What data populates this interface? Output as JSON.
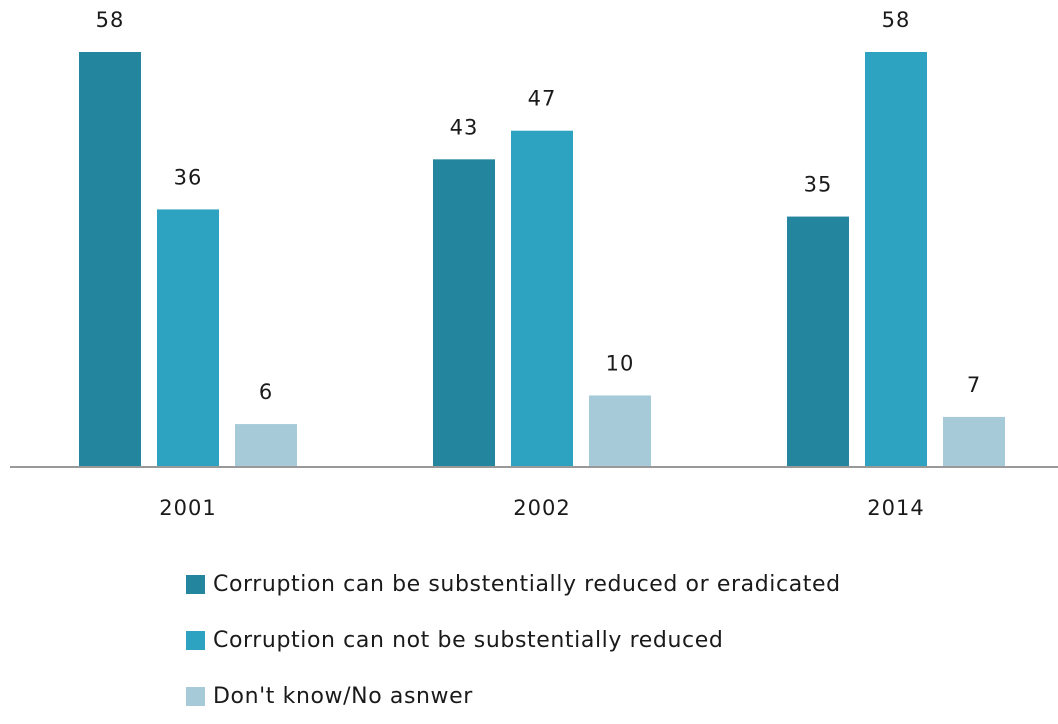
{
  "chart_data": {
    "type": "bar",
    "categories": [
      "2001",
      "2002",
      "2014"
    ],
    "series": [
      {
        "name": "Corruption can be substentially reduced or eradicated",
        "values": [
          58,
          43,
          35
        ],
        "color": "#24869e"
      },
      {
        "name": "Corruption can not be substentially reduced",
        "values": [
          36,
          47,
          58
        ],
        "color": "#2ea3c1"
      },
      {
        "name": "Don't know/No asnwer",
        "values": [
          6,
          10,
          7
        ],
        "color": "#a7cad9"
      }
    ],
    "title": "",
    "xlabel": "",
    "ylabel": "",
    "ylim": [
      0,
      58
    ],
    "grid": false,
    "legend_position": "bottom",
    "axis_color": "#999999"
  }
}
